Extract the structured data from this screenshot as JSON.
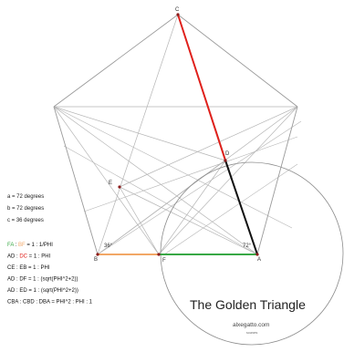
{
  "colors": {
    "construction": "#b5b5b5",
    "pentagon": "#9a9a9a",
    "circle": "#8c8c8c",
    "red": "#e0201b",
    "green": "#38a845",
    "orange": "#f2a766",
    "black": "#111111",
    "point": "#8b1a1a"
  },
  "points": {
    "C": "C",
    "D": "D",
    "E": "E",
    "F": "F",
    "A": "A",
    "B": "B"
  },
  "angle_marks": {
    "B": "36°",
    "A": "72°"
  },
  "angles": [
    "a = 72 degrees",
    "b = 72 degrees",
    "c = 36 degrees"
  ],
  "formulas": [
    {
      "parts": [
        {
          "text": "FA",
          "color": "green"
        },
        {
          "text": " : ",
          "color": "black"
        },
        {
          "text": "BF",
          "color": "orange"
        },
        {
          "text": " = 1 : 1/PHI",
          "color": "black"
        }
      ]
    },
    {
      "parts": [
        {
          "text": "AD : ",
          "color": "black"
        },
        {
          "text": "DC",
          "color": "red"
        },
        {
          "text": " = 1 : PHI",
          "color": "black"
        }
      ]
    },
    {
      "parts": [
        {
          "text": "CE : EB = 1 : PHI",
          "color": "black"
        }
      ]
    },
    {
      "parts": [
        {
          "text": "AD : DF = 1 : (sqrt(PHI^2+2))",
          "color": "black"
        }
      ]
    },
    {
      "parts": [
        {
          "text": "AD : ED = 1 : (sqrt(PHI^2+2))",
          "color": "black"
        }
      ]
    },
    {
      "parts": [
        {
          "text": "CBA : CBD : DBA = PHI^2 : PHI : 1",
          "color": "black"
        }
      ]
    }
  ],
  "title": "The Golden Triangle",
  "site": "alxegatto.com",
  "credit": "sources"
}
